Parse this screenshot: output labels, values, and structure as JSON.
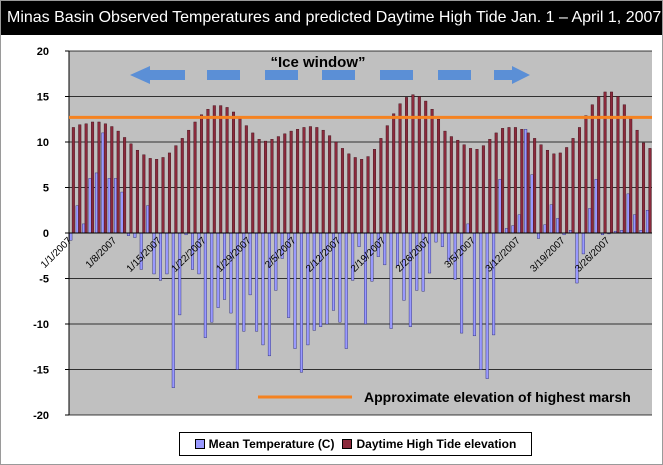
{
  "title": "Minas Basin Observed Temperatures and predicted Daytime High Tide Jan. 1 – April 1, 2007",
  "legend": {
    "temp_label": "Mean Temperature (C)",
    "tide_label": "Daytime High Tide elevation"
  },
  "colors": {
    "plot_bg": "#c0c0c0",
    "temp_fill": "#9999ff",
    "temp_stroke": "#1f1f6e",
    "tide_fill": "#8b2a3c",
    "tide_stroke": "#3a0a14",
    "marsh_line": "#f58220",
    "arrow": "#5b8fd6"
  },
  "chart_data": {
    "type": "bar",
    "title": "Minas Basin Observed Temperatures and predicted Daytime High Tide Jan. 1 – April 1, 2007",
    "ylim": [
      -20,
      20
    ],
    "y_ticks": [
      20,
      15,
      10,
      5,
      0,
      -5,
      -10,
      -15,
      -20
    ],
    "grid": true,
    "x_tick_labels": [
      "1/1/2007",
      "1/8/2007",
      "1/15/2007",
      "1/22/2007",
      "1/29/2007",
      "2/5/2007",
      "2/12/2007",
      "2/19/2007",
      "2/26/2007",
      "3/5/2007",
      "3/12/2007",
      "3/19/2007",
      "3/26/2007"
    ],
    "days": 91,
    "series": [
      {
        "name": "Mean Temperature (C)",
        "values": [
          -0.8,
          3.0,
          1.0,
          6.0,
          6.6,
          11.0,
          6.0,
          6.0,
          4.5,
          -0.3,
          -0.5,
          -4.0,
          3.0,
          -4.5,
          -5.2,
          -4.5,
          -17.0,
          -9.0,
          -0.2,
          -4.0,
          -4.5,
          -11.5,
          -9.8,
          -8.2,
          -7.3,
          -8.8,
          -15.0,
          -10.8,
          -6.8,
          -10.8,
          -12.3,
          -13.5,
          -6.3,
          -2.8,
          -9.3,
          -12.7,
          -15.3,
          -12.3,
          -10.7,
          -10.3,
          -10.0,
          -8.5,
          -9.8,
          -12.7,
          -5.2,
          -1.5,
          -10.0,
          -5.3,
          -2.6,
          -3.5,
          -10.5,
          -3.6,
          -7.4,
          -10.3,
          -6.3,
          -6.4,
          -4.4,
          -1.0,
          -1.5,
          -3.1,
          -5.1,
          -11.0,
          1.0,
          -11.3,
          -15.0,
          -16.0,
          -11.2,
          5.9,
          0.5,
          0.8,
          2.0,
          11.4,
          6.4,
          -0.6,
          0.9,
          3.1,
          1.6,
          -0.2,
          0.3,
          -5.5,
          -2.3,
          2.7,
          5.9,
          -0.2,
          -0.1,
          0.2,
          0.3,
          4.3,
          2.0,
          0.3,
          2.5
        ]
      },
      {
        "name": "Daytime High Tide elevation",
        "values": [
          11.6,
          11.9,
          12.0,
          12.2,
          12.2,
          12.0,
          11.7,
          11.2,
          10.5,
          9.8,
          9.1,
          8.6,
          8.2,
          8.1,
          8.3,
          8.8,
          9.6,
          10.4,
          11.3,
          12.2,
          13.0,
          13.6,
          14.0,
          14.0,
          13.8,
          13.3,
          12.6,
          11.8,
          11.0,
          10.3,
          10.1,
          10.3,
          10.6,
          10.9,
          11.2,
          11.4,
          11.6,
          11.7,
          11.6,
          11.3,
          10.7,
          10.0,
          9.3,
          8.7,
          8.3,
          8.1,
          8.4,
          9.2,
          10.4,
          11.8,
          13.1,
          14.2,
          14.9,
          15.2,
          15.0,
          14.5,
          13.6,
          12.5,
          11.2,
          10.6,
          10.2,
          9.7,
          9.3,
          9.2,
          9.6,
          10.3,
          11.0,
          11.5,
          11.6,
          11.6,
          11.4,
          11.0,
          10.4,
          9.7,
          9.1,
          8.7,
          8.8,
          9.4,
          10.4,
          11.6,
          12.9,
          14.1,
          15.0,
          15.5,
          15.5,
          15.0,
          14.1,
          12.8,
          11.3,
          9.9,
          9.3
        ]
      }
    ],
    "reference_line": {
      "value": 12.7,
      "label": "Approximate elevation of highest marsh"
    },
    "annotation": {
      "label": "“Ice window”"
    }
  }
}
